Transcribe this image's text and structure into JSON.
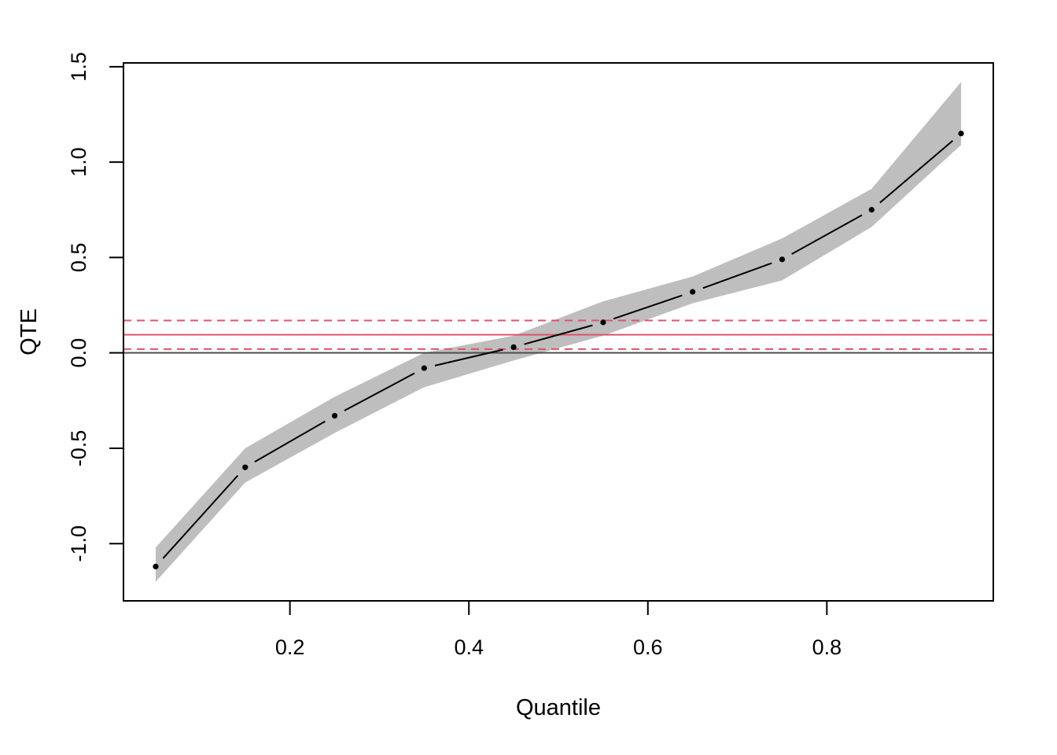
{
  "chart_data": {
    "type": "line",
    "xlabel": "Quantile",
    "ylabel": "QTE",
    "xlim": [
      0.014,
      0.986
    ],
    "ylim": [
      -1.3,
      1.52
    ],
    "x_ticks": [
      0.2,
      0.4,
      0.6,
      0.8
    ],
    "x_tick_labels": [
      "0.2",
      "0.4",
      "0.6",
      "0.8"
    ],
    "y_ticks": [
      -1.0,
      -0.5,
      0.0,
      0.5,
      1.0,
      1.5
    ],
    "y_tick_labels": [
      "-1.0",
      "-0.5",
      "0.0",
      "0.5",
      "1.0",
      "1.5"
    ],
    "grid": false,
    "legend": "none",
    "series": [
      {
        "x": [
          0.05,
          0.15,
          0.25,
          0.35,
          0.45,
          0.55,
          0.65,
          0.75,
          0.85,
          0.95
        ],
        "y": [
          -1.12,
          -0.6,
          -0.33,
          -0.08,
          0.03,
          0.16,
          0.32,
          0.49,
          0.75,
          1.15
        ],
        "lower": [
          -1.2,
          -0.68,
          -0.42,
          -0.18,
          -0.04,
          0.09,
          0.26,
          0.38,
          0.66,
          1.09
        ],
        "upper": [
          -1.02,
          -0.5,
          -0.23,
          0.0,
          0.09,
          0.27,
          0.4,
          0.6,
          0.86,
          1.42
        ],
        "line_style": "dashed",
        "color": "#000000",
        "band_color": "#bebebe"
      }
    ],
    "reference_lines": [
      {
        "y": 0.0,
        "color": "#4d4d4d",
        "style": "solid"
      },
      {
        "y": 0.095,
        "color": "#df536b",
        "style": "solid"
      },
      {
        "y": 0.17,
        "color": "#df536b",
        "style": "dashed"
      },
      {
        "y": 0.02,
        "color": "#df536b",
        "style": "dashed"
      }
    ]
  }
}
